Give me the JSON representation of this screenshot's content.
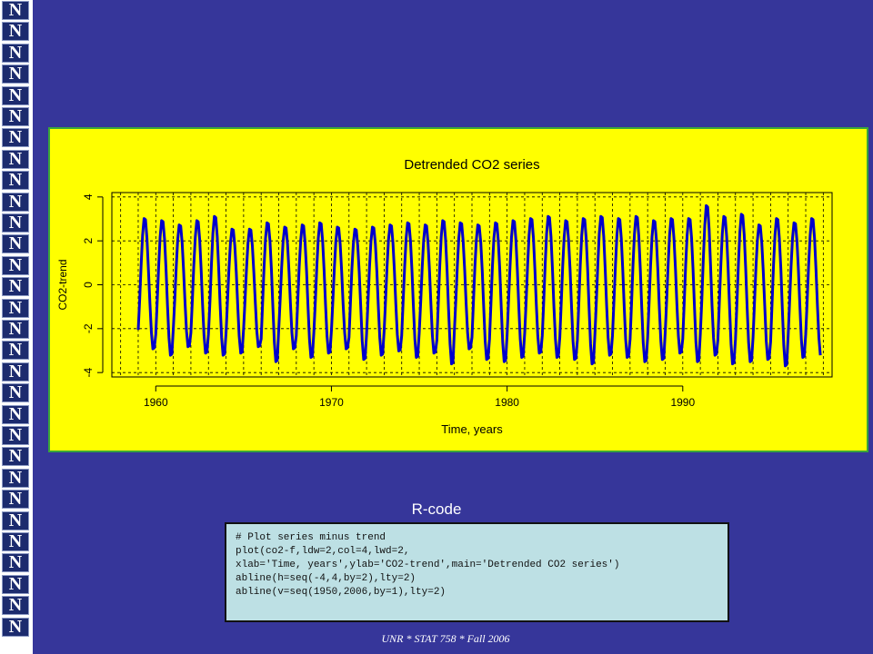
{
  "logo": {
    "letter": "N",
    "count": 30
  },
  "chart_data": {
    "type": "line",
    "title": "Detrended CO2 series",
    "xlabel": "Time, years",
    "ylabel": "CO2-trend",
    "xlim": [
      1957.5,
      1998.5
    ],
    "ylim": [
      -4.2,
      4.2
    ],
    "x_ticks": [
      1960,
      1970,
      1980,
      1990
    ],
    "y_ticks": [
      -4,
      -2,
      0,
      2,
      4
    ],
    "grid": true,
    "series": [
      {
        "start": 1959.0,
        "end": 1997.9,
        "frequency": 12,
        "color": "#0000cc",
        "peak_month_offset": 0.37,
        "amplitudes": [
          [
            3.1,
            -3.0
          ],
          [
            3.0,
            -3.3
          ],
          [
            2.8,
            -2.9
          ],
          [
            3.0,
            -3.2
          ],
          [
            3.2,
            -3.3
          ],
          [
            2.6,
            -3.2
          ],
          [
            2.6,
            -2.9
          ],
          [
            2.9,
            -3.6
          ],
          [
            2.7,
            -3.0
          ],
          [
            2.8,
            -3.4
          ],
          [
            2.9,
            -3.2
          ],
          [
            2.7,
            -3.0
          ],
          [
            2.6,
            -3.5
          ],
          [
            2.7,
            -3.3
          ],
          [
            2.8,
            -3.1
          ],
          [
            2.9,
            -3.4
          ],
          [
            2.8,
            -3.2
          ],
          [
            3.0,
            -3.7
          ],
          [
            2.9,
            -3.0
          ],
          [
            2.8,
            -3.5
          ],
          [
            2.9,
            -3.6
          ],
          [
            3.0,
            -3.4
          ],
          [
            3.1,
            -3.2
          ],
          [
            3.2,
            -3.4
          ],
          [
            3.0,
            -3.5
          ],
          [
            3.1,
            -3.7
          ],
          [
            3.2,
            -3.3
          ],
          [
            3.1,
            -3.4
          ],
          [
            3.2,
            -3.6
          ],
          [
            3.0,
            -3.5
          ],
          [
            3.1,
            -3.2
          ],
          [
            3.1,
            -3.6
          ],
          [
            3.7,
            -3.3
          ],
          [
            3.2,
            -3.7
          ],
          [
            3.3,
            -3.6
          ],
          [
            2.8,
            -3.5
          ],
          [
            3.1,
            -3.8
          ],
          [
            2.9,
            -3.4
          ],
          [
            3.1,
            -3.3
          ]
        ]
      }
    ]
  },
  "rcode": {
    "heading": "R-code",
    "lines": [
      "# Plot series minus trend",
      "plot(co2-f,ldw=2,col=4,lwd=2,",
      "xlab='Time, years',ylab='CO2-trend',main='Detrended CO2 series')",
      "abline(h=seq(-4,4,by=2),lty=2)",
      "abline(v=seq(1950,2006,by=1),lty=2)"
    ]
  },
  "footer": "UNR * STAT 758 * Fall 2006"
}
